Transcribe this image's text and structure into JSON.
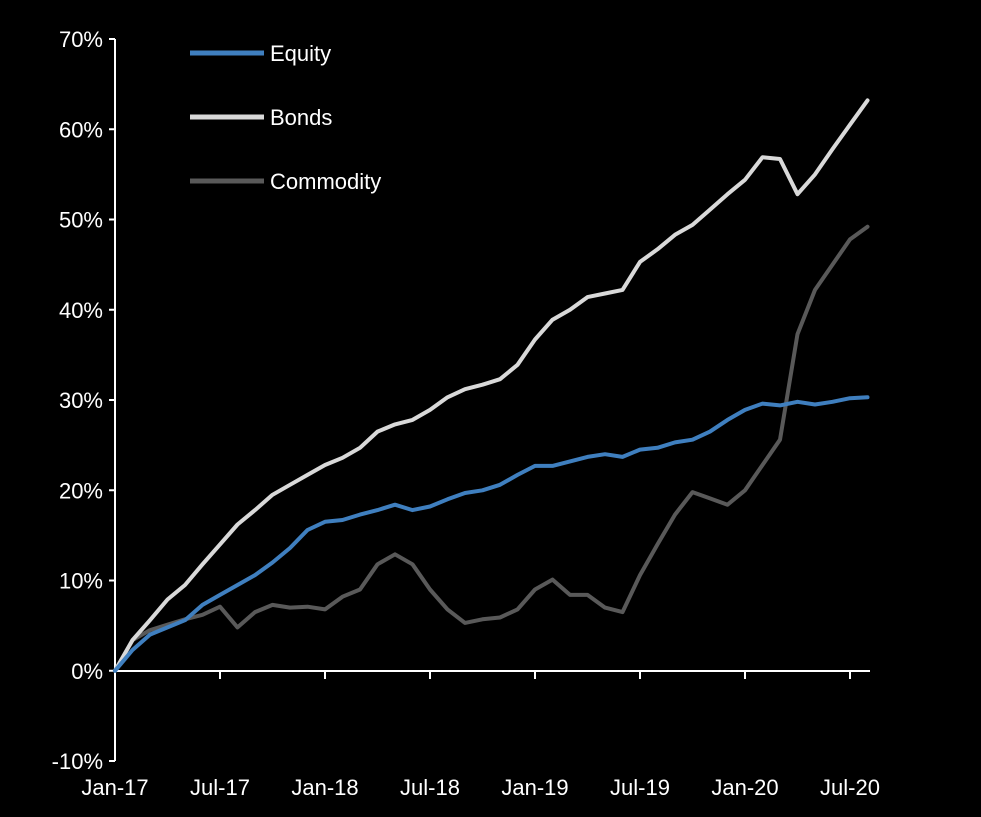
{
  "chart_data": {
    "type": "line",
    "title": "",
    "xlabel": "",
    "ylabel": "",
    "x_tick_labels": [
      "Jan-17",
      "Jul-17",
      "Jan-18",
      "Jul-18",
      "Jan-19",
      "Jul-19",
      "Jan-20",
      "Jul-20"
    ],
    "y_tick_labels": [
      "-10%",
      "0%",
      "10%",
      "20%",
      "30%",
      "40%",
      "50%",
      "60%",
      "70%"
    ],
    "ylim": [
      -10,
      70
    ],
    "y_unit": "%",
    "x_start": "Jan-17",
    "x_frequency": "monthly",
    "grid": false,
    "legend_position": "top-left",
    "series": [
      {
        "name": "Equity",
        "color": "#3f7fbf",
        "values": [
          0,
          2.3,
          4,
          4.8,
          5.6,
          7.3,
          8.4,
          9.5,
          10.6,
          12,
          13.6,
          15.6,
          16.5,
          16.7,
          17.3,
          17.8,
          18.4,
          17.8,
          18.2,
          19,
          19.7,
          20,
          20.6,
          21.7,
          22.7,
          22.7,
          23.2,
          23.7,
          24,
          23.7,
          24.5,
          24.7,
          25.3,
          25.6,
          26.5,
          27.8,
          28.9,
          29.6,
          29.4,
          29.8,
          29.5,
          29.8,
          30.2,
          30.3
        ]
      },
      {
        "name": "Bonds",
        "color": "#d9d9d9",
        "values": [
          0,
          3.4,
          5.6,
          7.9,
          9.5,
          11.8,
          14,
          16.2,
          17.8,
          19.5,
          20.6,
          21.7,
          22.8,
          23.6,
          24.7,
          26.5,
          27.3,
          27.8,
          28.9,
          30.3,
          31.2,
          31.7,
          32.3,
          33.9,
          36.7,
          38.9,
          40,
          41.4,
          41.8,
          42.2,
          45.3,
          46.7,
          48.3,
          49.4,
          51.1,
          52.8,
          54.4,
          56.9,
          56.7,
          52.8,
          55,
          57.8,
          60.5,
          63.2
        ]
      },
      {
        "name": "Commodity",
        "color": "#595959",
        "values": [
          0,
          3.4,
          4.5,
          5.1,
          5.7,
          6.2,
          7.1,
          4.8,
          6.5,
          7.3,
          7,
          7.1,
          6.8,
          8.2,
          9,
          11.8,
          12.9,
          11.8,
          9,
          6.8,
          5.3,
          5.7,
          5.9,
          6.8,
          9,
          10.1,
          8.4,
          8.4,
          7,
          6.5,
          10.6,
          14,
          17.3,
          19.8,
          19.1,
          18.4,
          20,
          22.8,
          25.6,
          37.3,
          42.2,
          45,
          47.8,
          49.2
        ]
      }
    ]
  }
}
